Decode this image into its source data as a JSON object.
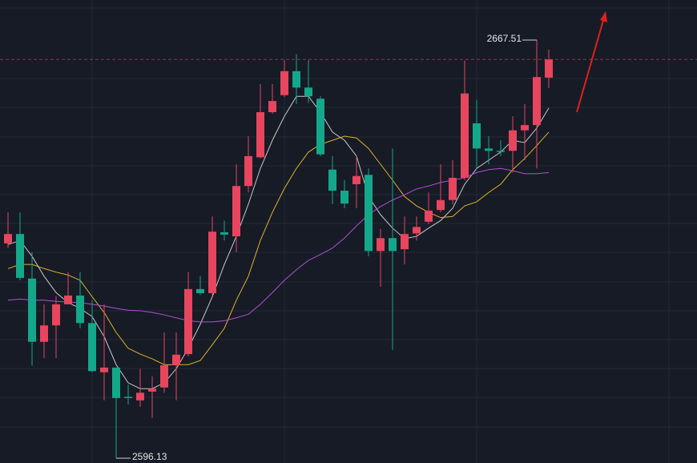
{
  "chart_data": {
    "type": "candlestick",
    "ylim": [
      2595.31,
      2674.35
    ],
    "up_color": "#e8455e",
    "down_color": "#14a88a",
    "open": [
      2632.8,
      2634.4,
      2626.8,
      2616.0,
      2618.8,
      2622.4,
      2623.9,
      2619.2,
      2610.8,
      2611.6,
      2606.6,
      2606.0,
      2607.5,
      2608.2,
      2612.0,
      2613.9,
      2625.0,
      2624.3,
      2634.7,
      2634.0,
      2642.6,
      2647.5,
      2655.2,
      2658.1,
      2662.2,
      2659.4,
      2657.5,
      2645.4,
      2641.8,
      2642.9,
      2644.5,
      2631.5,
      2633.7,
      2631.8,
      2634.5,
      2636.5,
      2638.5,
      2640.2,
      2644.0,
      2653.3,
      2649.0,
      2648.6,
      2648.6,
      2652.1,
      2653.0,
      2661.1
    ],
    "high": [
      2638.1,
      2638.1,
      2631.3,
      2622.4,
      2623.8,
      2627.9,
      2627.9,
      2623.1,
      2622.4,
      2611.6,
      2608.7,
      2611.4,
      2610.1,
      2617.6,
      2617.6,
      2627.9,
      2627.2,
      2637.4,
      2636.7,
      2646.3,
      2651.1,
      2660.0,
      2660.0,
      2664.1,
      2665.1,
      2664.1,
      2657.9,
      2647.7,
      2643.6,
      2647.7,
      2645.6,
      2635.3,
      2649.0,
      2637.4,
      2637.4,
      2641.5,
      2646.3,
      2647.0,
      2664.0,
      2657.3,
      2651.1,
      2650.4,
      2654.5,
      2656.6,
      2667.51,
      2665.9
    ],
    "low": [
      2632.0,
      2626.5,
      2611.9,
      2613.2,
      2613.2,
      2622.4,
      2618.3,
      2610.8,
      2606.0,
      2596.13,
      2605.3,
      2604.9,
      2603.0,
      2607.3,
      2606.0,
      2613.5,
      2624.0,
      2624.0,
      2633.3,
      2631.3,
      2641.5,
      2647.3,
      2654.9,
      2657.8,
      2656.6,
      2656.8,
      2647.7,
      2639.5,
      2638.8,
      2638.8,
      2630.6,
      2625.4,
      2614.6,
      2629.2,
      2633.3,
      2636.1,
      2638.1,
      2639.5,
      2643.6,
      2645.6,
      2646.3,
      2647.7,
      2644.9,
      2647.0,
      2645.6,
      2659.3
    ],
    "close": [
      2634.4,
      2626.9,
      2616.0,
      2618.8,
      2622.4,
      2623.9,
      2619.2,
      2611.0,
      2611.6,
      2606.4,
      2606.4,
      2607.3,
      2608.0,
      2612.0,
      2613.8,
      2625.0,
      2624.3,
      2634.8,
      2634.3,
      2642.6,
      2647.7,
      2655.2,
      2657.1,
      2662.2,
      2659.4,
      2657.9,
      2648.0,
      2641.8,
      2639.6,
      2644.3,
      2631.5,
      2633.7,
      2631.5,
      2634.4,
      2635.6,
      2638.4,
      2640.2,
      2644.0,
      2658.4,
      2649.0,
      2648.6,
      2648.5,
      2652.1,
      2653.0,
      2661.2,
      2664.2
    ],
    "lines": [
      {
        "color": "#c8c8c8",
        "values": [
          2632.6,
          2633.3,
          2630.6,
          2627.2,
          2624.4,
          2622.7,
          2621.7,
          2620.3,
          2616.9,
          2612.1,
          2609.0,
          2608.0,
          2608.0,
          2609.0,
          2611.4,
          2614.9,
          2619.0,
          2623.7,
          2629.2,
          2634.0,
          2639.5,
          2645.6,
          2650.4,
          2654.5,
          2657.9,
          2657.9,
          2655.2,
          2651.8,
          2650.4,
          2647.7,
          2640.8,
          2637.7,
          2635.4,
          2633.6,
          2634.0,
          2635.4,
          2636.7,
          2638.8,
          2642.9,
          2645.6,
          2647.0,
          2648.4,
          2650.4,
          2650.0,
          2652.5,
          2655.9
        ]
      },
      {
        "color": "#e0b429",
        "values": [
          2628.5,
          2629.2,
          2629.2,
          2628.5,
          2627.9,
          2627.4,
          2626.5,
          2623.7,
          2621.0,
          2617.6,
          2614.9,
          2613.9,
          2613.1,
          2612.1,
          2612.1,
          2612.1,
          2612.8,
          2615.5,
          2618.3,
          2623.1,
          2627.2,
          2633.3,
          2638.1,
          2642.2,
          2645.6,
          2648.4,
          2649.7,
          2650.4,
          2651.1,
          2650.8,
          2649.0,
          2646.3,
          2643.6,
          2640.8,
          2639.2,
          2638.1,
          2637.2,
          2637.4,
          2639.2,
          2639.9,
          2641.5,
          2642.9,
          2645.4,
          2647.3,
          2649.5,
          2651.8
        ]
      },
      {
        "color": "#b34fd6",
        "values": [
          2623.1,
          2623.3,
          2623.1,
          2623.1,
          2622.9,
          2622.8,
          2622.7,
          2622.4,
          2622.1,
          2621.7,
          2621.4,
          2621.3,
          2621.0,
          2620.6,
          2620.1,
          2619.6,
          2619.4,
          2619.4,
          2619.6,
          2620.1,
          2620.7,
          2622.4,
          2624.4,
          2626.5,
          2628.3,
          2629.9,
          2630.9,
          2632.0,
          2633.7,
          2635.8,
          2637.7,
          2639.1,
          2640.2,
          2641.1,
          2642.1,
          2642.6,
          2643.2,
          2643.6,
          2644.0,
          2644.9,
          2645.4,
          2645.6,
          2645.2,
          2644.7,
          2644.7,
          2644.9
        ]
      }
    ]
  }
}
